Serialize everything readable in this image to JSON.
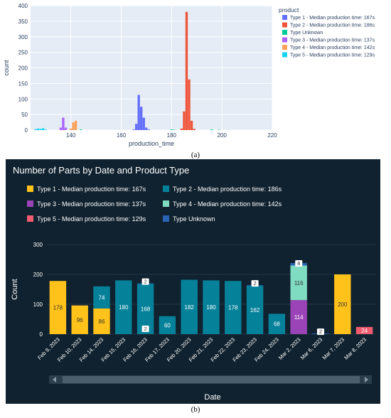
{
  "captions": {
    "a": "(a)",
    "b": "(b)"
  },
  "chart_data": [
    {
      "type": "bar",
      "subtype": "histogram",
      "title": "",
      "xlabel": "production_time",
      "ylabel": "count",
      "xlim": [
        124,
        220
      ],
      "ylim": [
        0,
        400
      ],
      "xticks": [
        140,
        160,
        180,
        200,
        220
      ],
      "yticks": [
        0,
        50,
        100,
        150,
        200,
        250,
        300,
        350,
        400
      ],
      "grid": true,
      "legend_title": "product",
      "legend_position": "right",
      "bin_width": 1,
      "series": [
        {
          "name": "Type 1 - Median production time: 167s",
          "color": "#636efa",
          "bins": [
            [
              165,
              2
            ],
            [
              166,
              20
            ],
            [
              167,
              113
            ],
            [
              168,
              75
            ],
            [
              169,
              40
            ],
            [
              170,
              8
            ],
            [
              171,
              2
            ]
          ]
        },
        {
          "name": "Type 2 - Median production time: 186s",
          "color": "#ef553b",
          "bins": [
            [
              184,
              5
            ],
            [
              185,
              60
            ],
            [
              186,
              380
            ],
            [
              187,
              163
            ],
            [
              188,
              30
            ],
            [
              189,
              4
            ]
          ]
        },
        {
          "name": "Type Unknown",
          "color": "#00cc96",
          "bins": [
            [
              144,
              2
            ],
            [
              180,
              2
            ],
            [
              181,
              1
            ],
            [
              196,
              2
            ],
            [
              199,
              1
            ]
          ]
        },
        {
          "name": "Type 3 - Median production time: 137s",
          "color": "#ab63fa",
          "bins": [
            [
              136,
              8
            ],
            [
              137,
              40
            ],
            [
              138,
              8
            ]
          ]
        },
        {
          "name": "Type 4 - Median production time: 142s",
          "color": "#ffa15a",
          "bins": [
            [
              140,
              5
            ],
            [
              141,
              25
            ],
            [
              142,
              30
            ]
          ]
        },
        {
          "name": "Type 5 - Median production time: 129s",
          "color": "#19d3f3",
          "bins": [
            [
              126,
              3
            ],
            [
              127,
              5
            ],
            [
              128,
              4
            ],
            [
              129,
              6
            ],
            [
              130,
              2
            ]
          ]
        }
      ]
    },
    {
      "type": "bar",
      "subtype": "stacked",
      "title": "Number of Parts by Date and Product Type",
      "xlabel": "Date",
      "ylabel": "Count",
      "ylim": [
        0,
        300
      ],
      "yticks": [
        0,
        100,
        200,
        300
      ],
      "grid": true,
      "legend_position": "top",
      "categories": [
        "Feb 9, 2023",
        "Feb 10, 2023",
        "Feb 14, 2023",
        "Feb 15, 2023",
        "Feb 16, 2023",
        "Feb 17, 2023",
        "Feb 20, 2023",
        "Feb 21, 2023",
        "Feb 22, 2023",
        "Feb 23, 2023",
        "Feb 24, 2023",
        "Mar 2, 2023",
        "Mar 6, 2023",
        "Mar 7, 2023",
        "Mar 8, 2023"
      ],
      "series": [
        {
          "name": "Type 1 - Median production time: 167s",
          "color": "#ffc21a",
          "values": [
            178,
            96,
            86,
            0,
            0,
            0,
            0,
            0,
            0,
            0,
            0,
            0,
            0,
            200,
            0
          ]
        },
        {
          "name": "Type 2 - Median production time: 186s",
          "color": "#05829a",
          "values": [
            0,
            0,
            74,
            180,
            168,
            60,
            182,
            180,
            178,
            162,
            68,
            0,
            0,
            0,
            0
          ]
        },
        {
          "name": "Type 3 - Median production time: 137s",
          "color": "#9b44b8",
          "values": [
            0,
            0,
            0,
            0,
            0,
            0,
            0,
            0,
            0,
            0,
            0,
            114,
            0,
            0,
            0
          ]
        },
        {
          "name": "Type 4 - Median production time: 142s",
          "color": "#7fdcc0",
          "values": [
            0,
            0,
            0,
            0,
            0,
            0,
            0,
            0,
            0,
            0,
            0,
            116,
            0,
            0,
            0
          ]
        },
        {
          "name": "Type 5 - Median production time: 129s",
          "color": "#f05c6e",
          "values": [
            0,
            0,
            0,
            0,
            0,
            0,
            0,
            0,
            0,
            0,
            0,
            0,
            0,
            0,
            24
          ]
        },
        {
          "name": "Type Unknown",
          "color": "#2a63b5",
          "values": [
            0,
            0,
            0,
            0,
            2,
            0,
            0,
            0,
            0,
            2,
            0,
            8,
            2,
            0,
            0
          ]
        }
      ],
      "data_labels": [
        [
          0,
          0,
          "178"
        ],
        [
          1,
          0,
          "96"
        ],
        [
          2,
          0,
          "86"
        ],
        [
          2,
          1,
          "74"
        ],
        [
          3,
          1,
          "180"
        ],
        [
          4,
          1,
          "168"
        ],
        [
          4,
          5,
          "2"
        ],
        [
          4,
          5,
          "2"
        ],
        [
          5,
          1,
          "60"
        ],
        [
          6,
          1,
          "182"
        ],
        [
          7,
          1,
          "180"
        ],
        [
          8,
          1,
          "178"
        ],
        [
          9,
          1,
          "162"
        ],
        [
          9,
          5,
          "2"
        ],
        [
          10,
          1,
          "68"
        ],
        [
          11,
          2,
          "114"
        ],
        [
          11,
          3,
          "116"
        ],
        [
          11,
          5,
          "8"
        ],
        [
          12,
          5,
          "2"
        ],
        [
          13,
          0,
          "200"
        ],
        [
          14,
          4,
          "24"
        ]
      ],
      "scrollbar": true
    }
  ]
}
